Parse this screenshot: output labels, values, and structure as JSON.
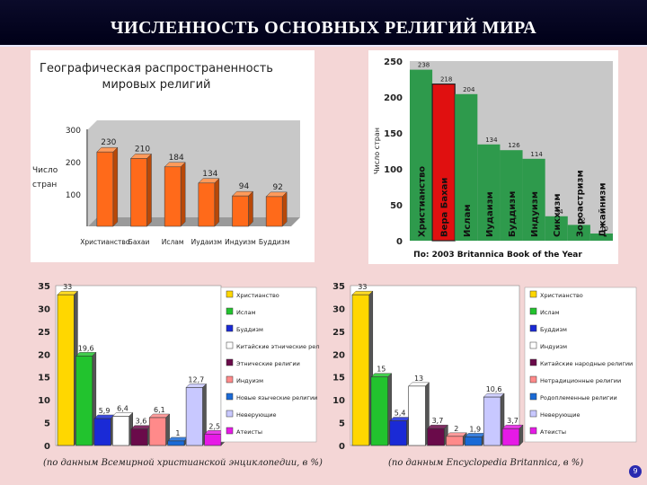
{
  "slide_title": "ЧИСЛЕННОСТЬ ОСНОВНЫХ РЕЛИГИЙ МИРА",
  "page_number": "9",
  "footnote_left": "(по данным Всемирной христианской энциклопедии, в %)",
  "footnote_right": "(по данным Encyclopedia Britannica, в %)",
  "colors": {
    "title_bg": "#000018",
    "orange": "#ff6a1a",
    "green_britannica": "#2e9a4c",
    "red_bahai": "#e01010"
  },
  "chart_data": [
    {
      "type": "bar",
      "title": "Географическая распространенность мировых религий",
      "ylabel": "Число стран",
      "categories": [
        "Христианство",
        "Бахаи",
        "Ислам",
        "Иудаизм",
        "Индуизм",
        "Буддизм"
      ],
      "values": [
        230,
        210,
        184,
        134,
        94,
        92
      ],
      "yticks": [
        100,
        200,
        300
      ],
      "ylim": [
        0,
        300
      ],
      "grid": false,
      "legend": "none"
    },
    {
      "type": "bar",
      "ylabel": "Число стран",
      "categories": [
        "Христианство",
        "Вера Бахаи",
        "Ислам",
        "Иудаизм",
        "Буддизм",
        "Индуизм",
        "Сикхизм",
        "Зороастризм",
        "Джайнизм"
      ],
      "values": [
        238,
        218,
        204,
        134,
        126,
        114,
        34,
        22,
        10
      ],
      "yticks": [
        0,
        50,
        100,
        150,
        200,
        250
      ],
      "ylim": [
        0,
        250
      ],
      "source": "По: 2003 Britannica Book of the Year",
      "grid": false,
      "legend": "none"
    },
    {
      "type": "bar",
      "categories": [
        "Христианство",
        "Ислам",
        "Буддизм",
        "Китайские этнические религии",
        "Этнические религии",
        "Индуизм",
        "Новые языческие религии",
        "Неверующие",
        "Атеисты"
      ],
      "values": [
        33,
        19.6,
        5.9,
        6.4,
        3.6,
        6.1,
        1,
        12.7,
        2.5
      ],
      "labels": [
        "33",
        "19,6",
        "5,9",
        "6,4",
        "3,6",
        "6,1",
        "1",
        "12,7",
        "2,5"
      ],
      "yticks": [
        0,
        5,
        10,
        15,
        20,
        25,
        30,
        35
      ],
      "ylim": [
        0,
        35
      ],
      "legend": "right"
    },
    {
      "type": "bar",
      "categories": [
        "Христианство",
        "Ислам",
        "Буддизм",
        "Индуизм",
        "Китайские народные религии",
        "Нетрадиционные религии",
        "Родоплеменные религии",
        "Неверующие",
        "Атеисты"
      ],
      "values": [
        33,
        15,
        5.4,
        13,
        3.7,
        2,
        1.9,
        10.6,
        3.7
      ],
      "labels": [
        "33",
        "15",
        "5,4",
        "13",
        "3,7",
        "2",
        "1,9",
        "10,6",
        "3,7"
      ],
      "yticks": [
        0,
        5,
        10,
        15,
        20,
        25,
        30,
        35
      ],
      "ylim": [
        0,
        35
      ],
      "legend": "right"
    }
  ]
}
